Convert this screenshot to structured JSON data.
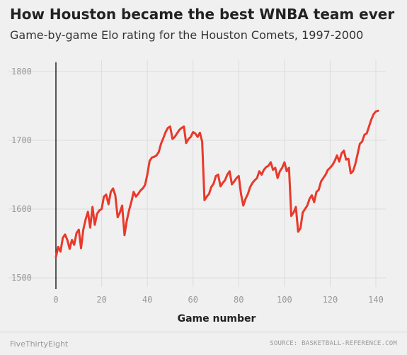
{
  "chart_data": {
    "type": "line",
    "title": "How Houston became the best WNBA team ever",
    "subtitle": "Game-by-game Elo rating for the Houston Comets, 1997-2000",
    "xlabel": "Game number",
    "ylabel": "",
    "xlim": [
      0,
      141
    ],
    "ylim": [
      1500,
      1810
    ],
    "x_ticks": [
      0,
      20,
      40,
      60,
      80,
      100,
      120,
      140
    ],
    "y_ticks": [
      1500,
      1600,
      1700,
      1800
    ],
    "grid": true,
    "color": "#e8392b",
    "series": [
      {
        "x": [
          0,
          1,
          2,
          3,
          4,
          5,
          6,
          7,
          8,
          9,
          10,
          11,
          12,
          13,
          14,
          15,
          16,
          17,
          18,
          19,
          20,
          21,
          22,
          23,
          24,
          25,
          26,
          27,
          28,
          29,
          30,
          31,
          32,
          33,
          34,
          35,
          36,
          37,
          38,
          39,
          40,
          41,
          42,
          43,
          44,
          45,
          46,
          47,
          48,
          49,
          50,
          51,
          52,
          53,
          54,
          55,
          56,
          57,
          58,
          59,
          60,
          61,
          62,
          63,
          64,
          65,
          66,
          67,
          68,
          69,
          70,
          71,
          72,
          73,
          74,
          75,
          76,
          77,
          78,
          79,
          80,
          81,
          82,
          83,
          84,
          85,
          86,
          87,
          88,
          89,
          90,
          91,
          92,
          93,
          94,
          95,
          96,
          97,
          98,
          99,
          100,
          101,
          102,
          103,
          104,
          105,
          106,
          107,
          108,
          109,
          110,
          111,
          112,
          113,
          114,
          115,
          116,
          117,
          118,
          119,
          120,
          121,
          122,
          123,
          124,
          125,
          126,
          127,
          128,
          129,
          130,
          131,
          132,
          133,
          134,
          135,
          136,
          137,
          138,
          139,
          140,
          141
        ],
        "values": [
          1530,
          1545,
          1538,
          1558,
          1563,
          1555,
          1542,
          1555,
          1548,
          1565,
          1570,
          1543,
          1570,
          1585,
          1596,
          1573,
          1603,
          1577,
          1593,
          1598,
          1600,
          1618,
          1621,
          1607,
          1625,
          1630,
          1620,
          1588,
          1595,
          1605,
          1562,
          1583,
          1598,
          1610,
          1625,
          1618,
          1622,
          1627,
          1630,
          1635,
          1650,
          1670,
          1675,
          1676,
          1678,
          1683,
          1695,
          1703,
          1712,
          1718,
          1720,
          1702,
          1705,
          1710,
          1715,
          1718,
          1720,
          1696,
          1702,
          1705,
          1712,
          1710,
          1705,
          1711,
          1698,
          1613,
          1618,
          1622,
          1632,
          1637,
          1648,
          1650,
          1633,
          1638,
          1642,
          1650,
          1655,
          1636,
          1640,
          1645,
          1648,
          1622,
          1605,
          1615,
          1622,
          1632,
          1638,
          1642,
          1645,
          1655,
          1650,
          1657,
          1661,
          1663,
          1668,
          1657,
          1660,
          1645,
          1655,
          1660,
          1668,
          1655,
          1660,
          1590,
          1595,
          1603,
          1567,
          1572,
          1595,
          1600,
          1605,
          1615,
          1620,
          1610,
          1625,
          1628,
          1640,
          1645,
          1650,
          1657,
          1660,
          1664,
          1670,
          1678,
          1669,
          1681,
          1685,
          1672,
          1673,
          1652,
          1655,
          1665,
          1680,
          1695,
          1698,
          1708,
          1710,
          1720,
          1730,
          1738,
          1742,
          1743
        ]
      }
    ]
  },
  "footer": {
    "brand": "FiveThirtyEight",
    "source": "SOURCE: BASKETBALL-REFERENCE.COM"
  }
}
